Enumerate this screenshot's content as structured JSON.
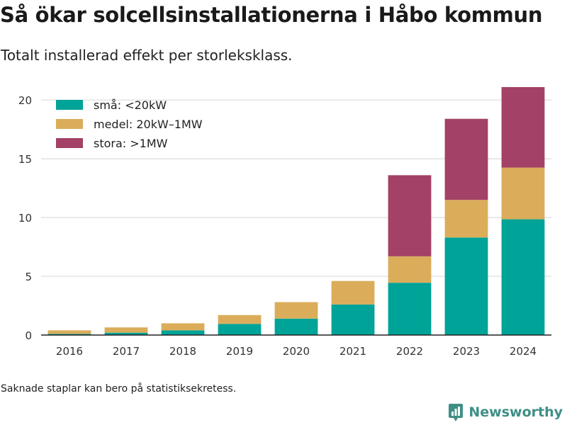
{
  "title": "Så ökar solcellsinstallationerna i Håbo kommun",
  "subtitle": "Totalt installerad effekt per storleksklass.",
  "footnote": "Saknade staplar kan bero på statistiksekretess.",
  "brand": {
    "name": "Newsworthy",
    "color": "#3f8f86"
  },
  "chart_data": {
    "type": "bar",
    "stacked": true,
    "categories": [
      "2016",
      "2017",
      "2018",
      "2019",
      "2020",
      "2021",
      "2022",
      "2023",
      "2024"
    ],
    "series": [
      {
        "name": "små: <20kW",
        "color": "#00a398",
        "values": [
          0.1,
          0.2,
          0.4,
          0.95,
          1.4,
          2.6,
          4.45,
          8.3,
          9.85
        ]
      },
      {
        "name": "medel: 20kW–1MW",
        "color": "#dbad5a",
        "values": [
          0.3,
          0.45,
          0.6,
          0.75,
          1.4,
          2.0,
          2.25,
          3.2,
          4.4
        ]
      },
      {
        "name": "stora: >1MW",
        "color": "#a34166",
        "values": [
          0,
          0,
          0,
          0,
          0,
          0,
          6.9,
          6.9,
          6.85
        ]
      }
    ],
    "ylim": [
      0,
      22
    ],
    "yticks": [
      0,
      5,
      10,
      15,
      20
    ],
    "grid": true,
    "legend": "top-left",
    "xlabel": "",
    "ylabel": ""
  }
}
